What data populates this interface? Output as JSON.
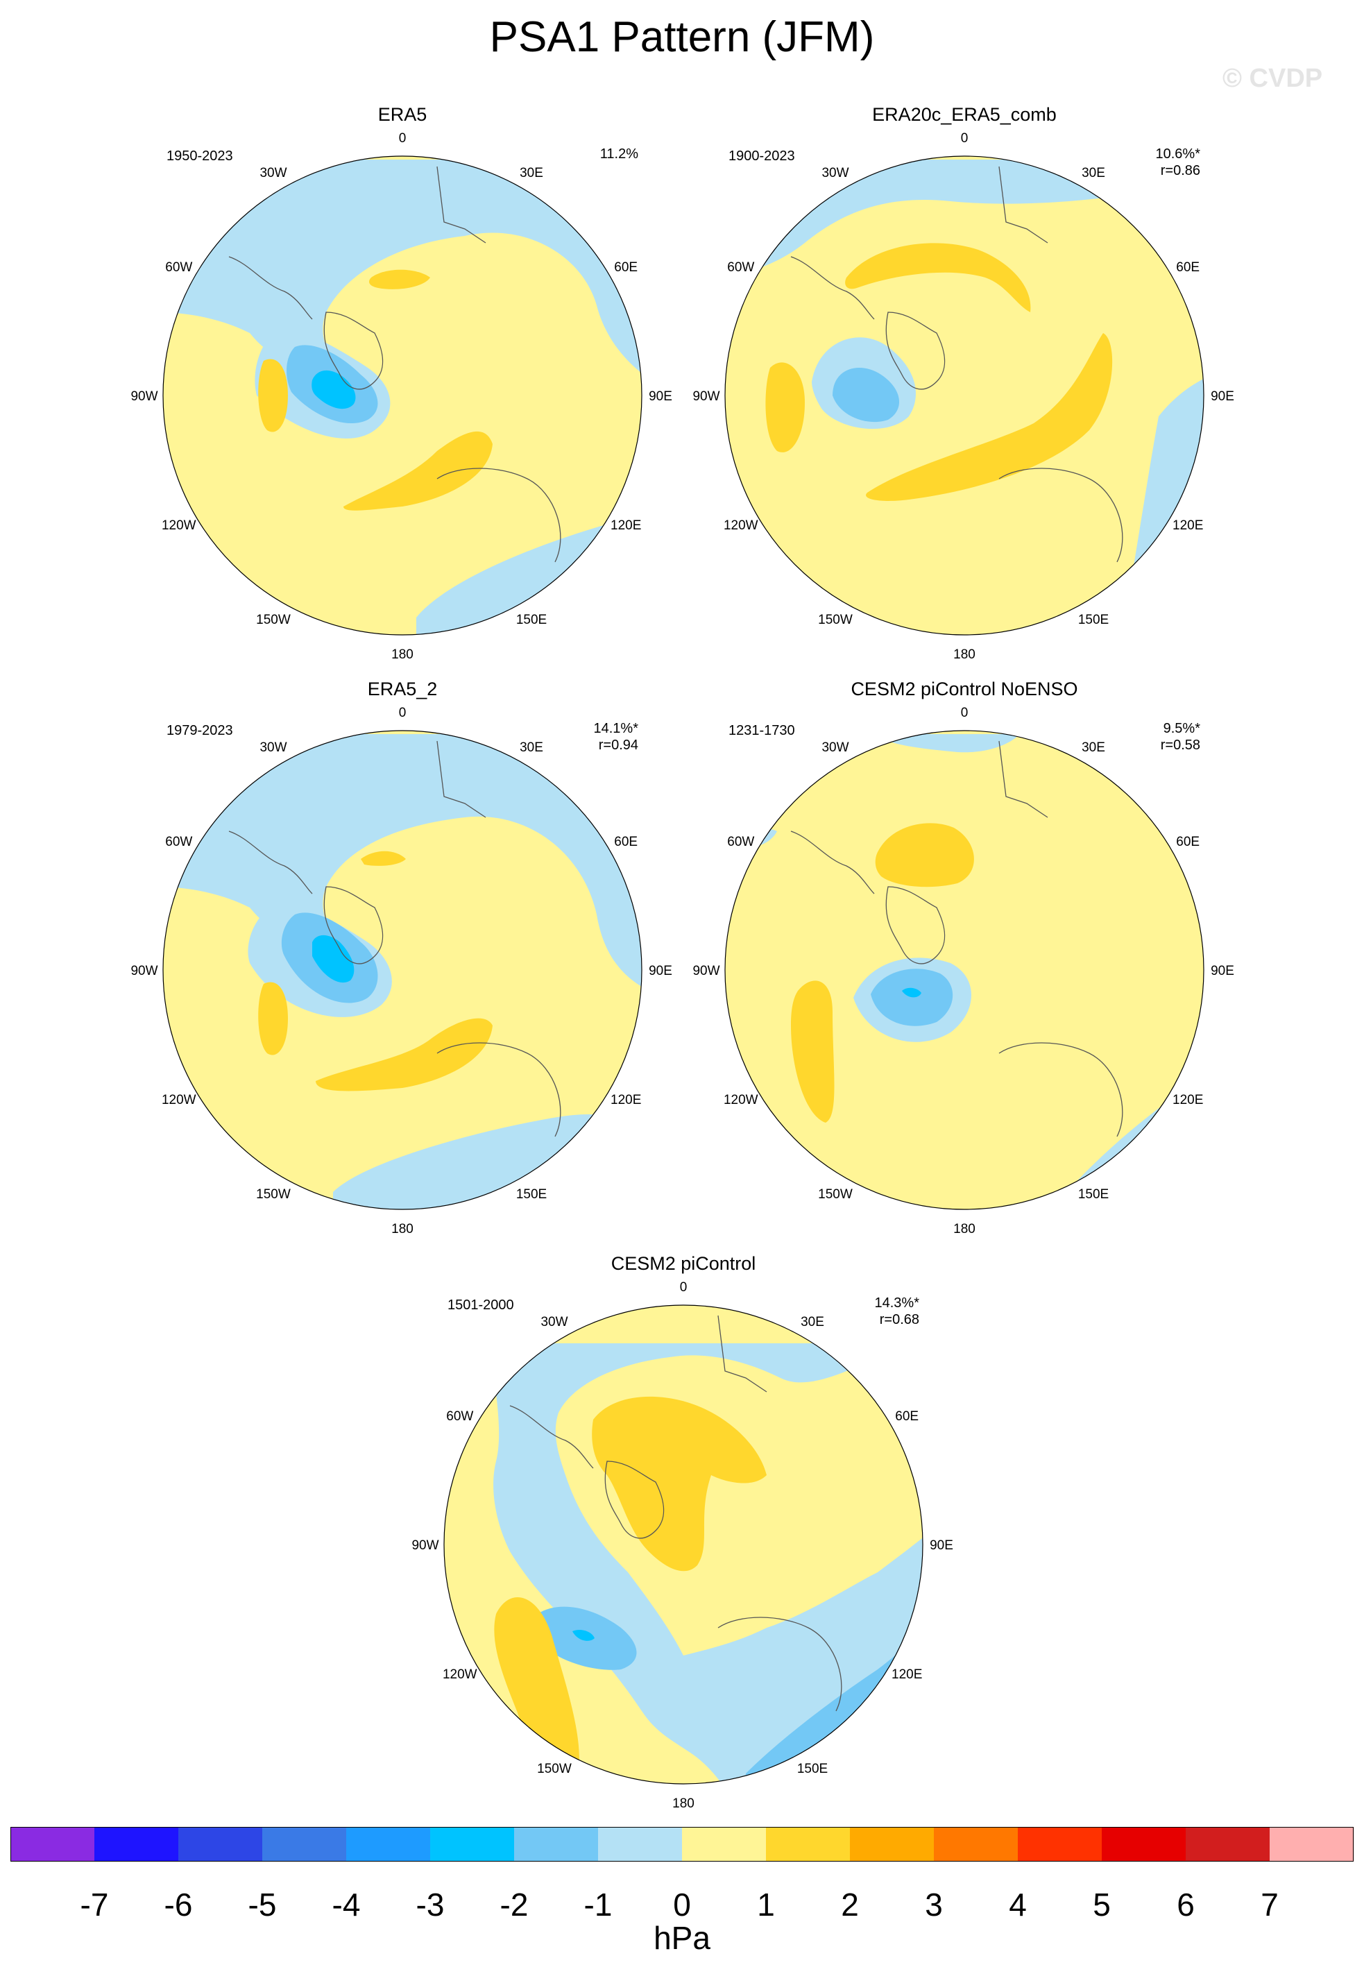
{
  "figure": {
    "title": "PSA1 Pattern (JFM)",
    "copyright": "© CVDP"
  },
  "longitude_labels": [
    "0",
    "30E",
    "60E",
    "90E",
    "120E",
    "150E",
    "180",
    "150W",
    "120W",
    "90W",
    "60W",
    "30W"
  ],
  "panels": [
    {
      "title": "ERA5",
      "period": "1950-2023",
      "variance": "11.2%",
      "correlation": ""
    },
    {
      "title": "ERA20c_ERA5_comb",
      "period": "1900-2023",
      "variance": "10.6%*",
      "correlation": "r=0.86"
    },
    {
      "title": "ERA5_2",
      "period": "1979-2023",
      "variance": "14.1%*",
      "correlation": "r=0.94"
    },
    {
      "title": "CESM2 piControl NoENSO",
      "period": "1231-1730",
      "variance": "9.5%*",
      "correlation": "r=0.58"
    },
    {
      "title": "CESM2 piControl",
      "period": "1501-2000",
      "variance": "14.3%*",
      "correlation": "r=0.68"
    }
  ],
  "colorbar": {
    "units": "hPa",
    "labels": [
      "-7",
      "-6",
      "-5",
      "-4",
      "-3",
      "-2",
      "-1",
      "0",
      "1",
      "2",
      "3",
      "4",
      "5",
      "6",
      "7"
    ],
    "colors": [
      "#8a2be2",
      "#1e14ff",
      "#2d46e6",
      "#3a7ae6",
      "#1e9bff",
      "#00c3ff",
      "#73c8f5",
      "#b4e1f5",
      "#fff596",
      "#ffd72d",
      "#ffaa00",
      "#ff7800",
      "#ff3200",
      "#e60000",
      "#d21e1e",
      "#ffafaf"
    ]
  },
  "palette": {
    "neg3": "#1e9bff",
    "neg2": "#00c3ff",
    "neg1": "#73c8f5",
    "neg0": "#b4e1f5",
    "pos0": "#fff596",
    "pos1": "#ffd72d",
    "coast": "#555555"
  }
}
